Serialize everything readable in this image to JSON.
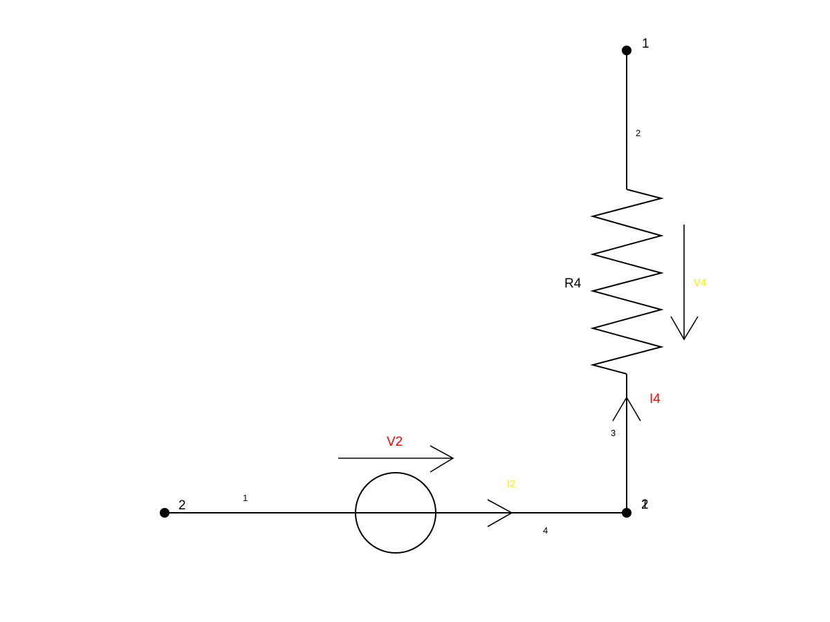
{
  "colors": {
    "wire": "#000000",
    "label_black": "#000000",
    "label_red": "#ff0000",
    "label_yellow": "#ffee00",
    "background": "#ffffff"
  },
  "nodes": {
    "top": {
      "label": "1"
    },
    "left": {
      "label": "2"
    },
    "corner": {
      "label_a": "1",
      "label_b": "2"
    }
  },
  "branches": {
    "vertical_top": {
      "label": "2"
    },
    "vertical_bottom": {
      "label": "3"
    },
    "horizontal_left": {
      "label": "1"
    },
    "horizontal_right": {
      "label": "4"
    }
  },
  "components": {
    "resistor": {
      "name": "R4"
    },
    "voltage_source": {
      "name": "V2"
    }
  },
  "annotations": {
    "resistor_voltage": "V4",
    "resistor_current": "I4",
    "source_current": "I2"
  }
}
